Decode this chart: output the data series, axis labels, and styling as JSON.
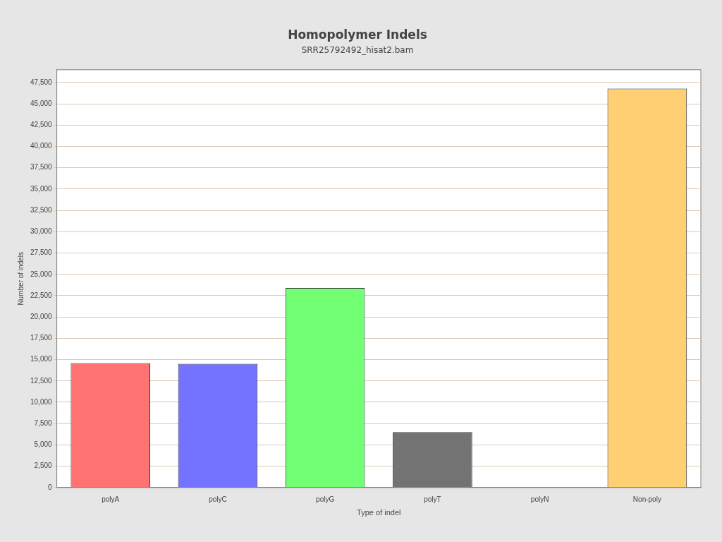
{
  "chart_data": {
    "type": "bar",
    "title": "Homopolymer Indels",
    "subtitle": "SRR25792492_hisat2.bam",
    "xlabel": "Type of indel",
    "ylabel": "Number of indels",
    "categories": [
      "polyA",
      "polyC",
      "polyG",
      "polyT",
      "polyN",
      "Non-poly"
    ],
    "values": [
      14600,
      14500,
      23400,
      6500,
      0,
      46800
    ],
    "colors": [
      "#ff7373",
      "#7373ff",
      "#73ff73",
      "#737373",
      "#73ffff",
      "#ffd073"
    ],
    "ylim": [
      0,
      49000
    ],
    "yticks": [
      {
        "value": 0,
        "label": "0"
      },
      {
        "value": 2500,
        "label": "2,500"
      },
      {
        "value": 5000,
        "label": "5,000"
      },
      {
        "value": 7500,
        "label": "7,500"
      },
      {
        "value": 10000,
        "label": "10,000"
      },
      {
        "value": 12500,
        "label": "12,500"
      },
      {
        "value": 15000,
        "label": "15,000"
      },
      {
        "value": 17500,
        "label": "17,500"
      },
      {
        "value": 20000,
        "label": "20,000"
      },
      {
        "value": 22500,
        "label": "22,500"
      },
      {
        "value": 25000,
        "label": "25,000"
      },
      {
        "value": 27500,
        "label": "27,500"
      },
      {
        "value": 30000,
        "label": "30,000"
      },
      {
        "value": 32500,
        "label": "32,500"
      },
      {
        "value": 35000,
        "label": "35,000"
      },
      {
        "value": 37500,
        "label": "37,500"
      },
      {
        "value": 40000,
        "label": "40,000"
      },
      {
        "value": 42500,
        "label": "42,500"
      },
      {
        "value": 45000,
        "label": "45,000"
      },
      {
        "value": 47500,
        "label": "47,500"
      }
    ],
    "grid": "y",
    "legend": false
  }
}
